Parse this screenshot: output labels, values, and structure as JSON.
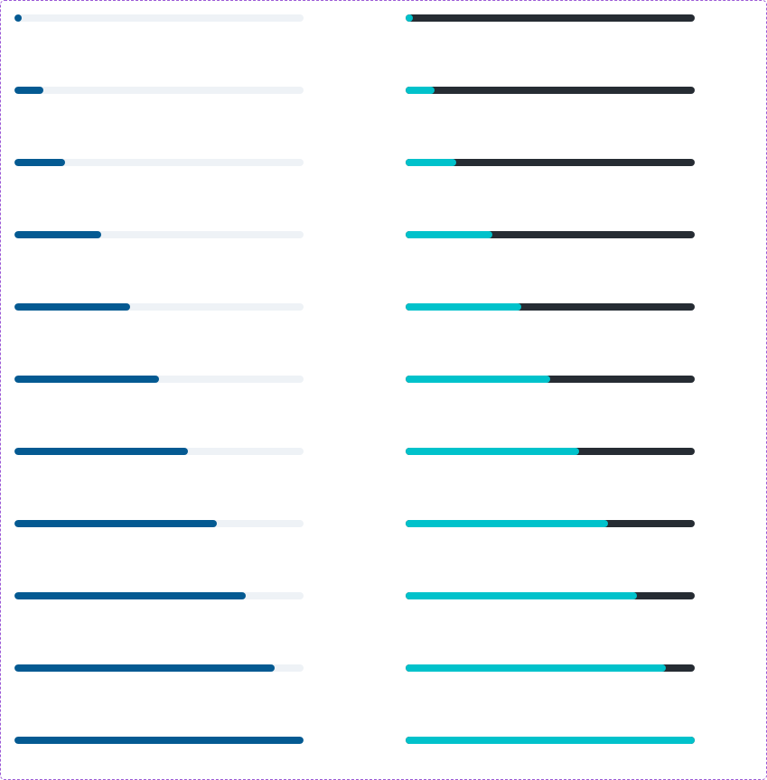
{
  "theme": {
    "light": {
      "track_color": "#eef2f6",
      "fill_color": "#045a92"
    },
    "dark": {
      "track_color": "#262c33",
      "fill_color": "#00c2cb"
    },
    "frame_border_color": "#9b59d6"
  },
  "progress_bars": {
    "light": [
      {
        "value": 0
      },
      {
        "value": 10
      },
      {
        "value": 17.5
      },
      {
        "value": 30
      },
      {
        "value": 40
      },
      {
        "value": 50
      },
      {
        "value": 60
      },
      {
        "value": 70
      },
      {
        "value": 80
      },
      {
        "value": 90
      },
      {
        "value": 100
      }
    ],
    "dark": [
      {
        "value": 0
      },
      {
        "value": 10
      },
      {
        "value": 17.5
      },
      {
        "value": 30
      },
      {
        "value": 40
      },
      {
        "value": 50
      },
      {
        "value": 60
      },
      {
        "value": 70
      },
      {
        "value": 80
      },
      {
        "value": 90
      },
      {
        "value": 100
      }
    ]
  }
}
